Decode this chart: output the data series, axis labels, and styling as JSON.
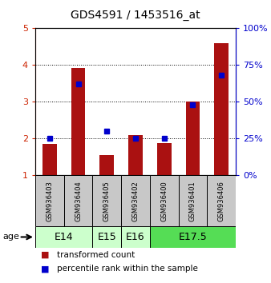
{
  "title": "GDS4591 / 1453516_at",
  "samples": [
    "GSM936403",
    "GSM936404",
    "GSM936405",
    "GSM936402",
    "GSM936400",
    "GSM936401",
    "GSM936406"
  ],
  "transformed_counts": [
    1.85,
    3.93,
    1.55,
    2.1,
    1.88,
    3.0,
    4.6
  ],
  "percentile_ranks": [
    25,
    62,
    30,
    25,
    25,
    48,
    68
  ],
  "age_groups": [
    {
      "label": "E14",
      "samples": [
        0,
        1
      ],
      "color": "#ccffcc"
    },
    {
      "label": "E15",
      "samples": [
        2
      ],
      "color": "#ccffcc"
    },
    {
      "label": "E16",
      "samples": [
        3
      ],
      "color": "#ccffcc"
    },
    {
      "label": "E17.5",
      "samples": [
        4,
        5,
        6
      ],
      "color": "#55dd55"
    }
  ],
  "ylim_left": [
    1,
    5
  ],
  "ylim_right": [
    0,
    100
  ],
  "yticks_left": [
    1,
    2,
    3,
    4,
    5
  ],
  "yticks_right": [
    0,
    25,
    50,
    75,
    100
  ],
  "bar_color": "#aa1111",
  "percentile_color": "#0000cc",
  "bar_width": 0.5,
  "bg_color_samples": "#c8c8c8",
  "left_tick_color": "#cc2200",
  "right_tick_color": "#0000cc",
  "legend_items": [
    {
      "label": "transformed count",
      "color": "#aa1111"
    },
    {
      "label": "percentile rank within the sample",
      "color": "#0000cc"
    }
  ],
  "title_fontsize": 10,
  "tick_fontsize": 8,
  "sample_fontsize": 6,
  "age_fontsize": 9
}
